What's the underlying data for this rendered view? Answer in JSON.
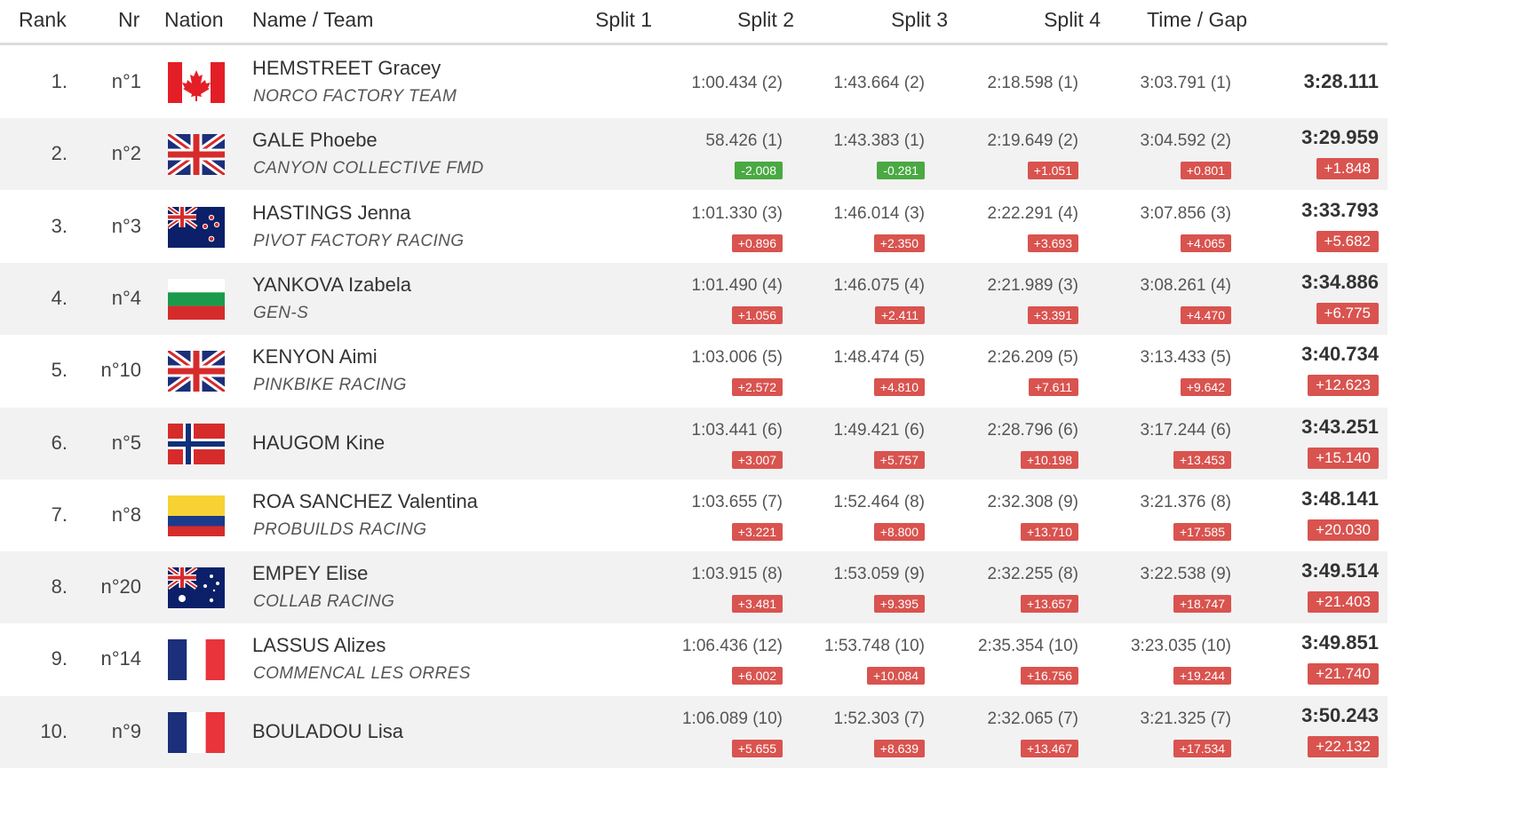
{
  "header": {
    "rank": "Rank",
    "nr": "Nr",
    "nation": "Nation",
    "name_team": "Name / Team",
    "split1": "Split 1",
    "split2": "Split 2",
    "split3": "Split 3",
    "split4": "Split 4",
    "time_gap": "Time / Gap"
  },
  "colors": {
    "slower_badge": "#d9534f",
    "faster_badge": "#49a942",
    "alt_row": "#f2f2f2",
    "header_rule": "#dcdcdc"
  },
  "rows": [
    {
      "rank": "1.",
      "nr": "n°1",
      "flag": "canada-flag-icon",
      "name": "HEMSTREET Gracey",
      "team": "NORCO FACTORY TEAM",
      "splits": [
        {
          "time": "1:00.434 (2)",
          "diff": ""
        },
        {
          "time": "1:43.664 (2)",
          "diff": ""
        },
        {
          "time": "2:18.598 (1)",
          "diff": ""
        },
        {
          "time": "3:03.791 (1)",
          "diff": ""
        }
      ],
      "time": "3:28.111",
      "gap": ""
    },
    {
      "rank": "2.",
      "nr": "n°2",
      "flag": "united-kingdom-flag-icon",
      "name": "GALE Phoebe",
      "team": "CANYON COLLECTIVE FMD",
      "splits": [
        {
          "time": "58.426 (1)",
          "diff": "-2.008"
        },
        {
          "time": "1:43.383 (1)",
          "diff": "-0.281"
        },
        {
          "time": "2:19.649 (2)",
          "diff": "+1.051"
        },
        {
          "time": "3:04.592 (2)",
          "diff": "+0.801"
        }
      ],
      "time": "3:29.959",
      "gap": "+1.848"
    },
    {
      "rank": "3.",
      "nr": "n°3",
      "flag": "new-zealand-flag-icon",
      "name": "HASTINGS Jenna",
      "team": "PIVOT FACTORY RACING",
      "splits": [
        {
          "time": "1:01.330 (3)",
          "diff": "+0.896"
        },
        {
          "time": "1:46.014 (3)",
          "diff": "+2.350"
        },
        {
          "time": "2:22.291 (4)",
          "diff": "+3.693"
        },
        {
          "time": "3:07.856 (3)",
          "diff": "+4.065"
        }
      ],
      "time": "3:33.793",
      "gap": "+5.682"
    },
    {
      "rank": "4.",
      "nr": "n°4",
      "flag": "bulgaria-flag-icon",
      "name": "YANKOVA Izabela",
      "team": "GEN-S",
      "splits": [
        {
          "time": "1:01.490 (4)",
          "diff": "+1.056"
        },
        {
          "time": "1:46.075 (4)",
          "diff": "+2.411"
        },
        {
          "time": "2:21.989 (3)",
          "diff": "+3.391"
        },
        {
          "time": "3:08.261 (4)",
          "diff": "+4.470"
        }
      ],
      "time": "3:34.886",
      "gap": "+6.775"
    },
    {
      "rank": "5.",
      "nr": "n°10",
      "flag": "united-kingdom-flag-icon",
      "name": "KENYON Aimi",
      "team": "PINKBIKE RACING",
      "splits": [
        {
          "time": "1:03.006 (5)",
          "diff": "+2.572"
        },
        {
          "time": "1:48.474 (5)",
          "diff": "+4.810"
        },
        {
          "time": "2:26.209 (5)",
          "diff": "+7.611"
        },
        {
          "time": "3:13.433 (5)",
          "diff": "+9.642"
        }
      ],
      "time": "3:40.734",
      "gap": "+12.623"
    },
    {
      "rank": "6.",
      "nr": "n°5",
      "flag": "norway-flag-icon",
      "name": "HAUGOM Kine",
      "team": "",
      "splits": [
        {
          "time": "1:03.441 (6)",
          "diff": "+3.007"
        },
        {
          "time": "1:49.421 (6)",
          "diff": "+5.757"
        },
        {
          "time": "2:28.796 (6)",
          "diff": "+10.198"
        },
        {
          "time": "3:17.244 (6)",
          "diff": "+13.453"
        }
      ],
      "time": "3:43.251",
      "gap": "+15.140"
    },
    {
      "rank": "7.",
      "nr": "n°8",
      "flag": "colombia-flag-icon",
      "name": "ROA SANCHEZ Valentina",
      "team": "PROBUILDS RACING",
      "splits": [
        {
          "time": "1:03.655 (7)",
          "diff": "+3.221"
        },
        {
          "time": "1:52.464 (8)",
          "diff": "+8.800"
        },
        {
          "time": "2:32.308 (9)",
          "diff": "+13.710"
        },
        {
          "time": "3:21.376 (8)",
          "diff": "+17.585"
        }
      ],
      "time": "3:48.141",
      "gap": "+20.030"
    },
    {
      "rank": "8.",
      "nr": "n°20",
      "flag": "australia-flag-icon",
      "name": "EMPEY Elise",
      "team": "COLLAB RACING",
      "splits": [
        {
          "time": "1:03.915 (8)",
          "diff": "+3.481"
        },
        {
          "time": "1:53.059 (9)",
          "diff": "+9.395"
        },
        {
          "time": "2:32.255 (8)",
          "diff": "+13.657"
        },
        {
          "time": "3:22.538 (9)",
          "diff": "+18.747"
        }
      ],
      "time": "3:49.514",
      "gap": "+21.403"
    },
    {
      "rank": "9.",
      "nr": "n°14",
      "flag": "france-flag-icon",
      "name": "LASSUS Alizes",
      "team": "COMMENCAL LES ORRES",
      "splits": [
        {
          "time": "1:06.436 (12)",
          "diff": "+6.002"
        },
        {
          "time": "1:53.748 (10)",
          "diff": "+10.084"
        },
        {
          "time": "2:35.354 (10)",
          "diff": "+16.756"
        },
        {
          "time": "3:23.035 (10)",
          "diff": "+19.244"
        }
      ],
      "time": "3:49.851",
      "gap": "+21.740"
    },
    {
      "rank": "10.",
      "nr": "n°9",
      "flag": "france-flag-icon",
      "name": "BOULADOU Lisa",
      "team": "",
      "splits": [
        {
          "time": "1:06.089 (10)",
          "diff": "+5.655"
        },
        {
          "time": "1:52.303 (7)",
          "diff": "+8.639"
        },
        {
          "time": "2:32.065 (7)",
          "diff": "+13.467"
        },
        {
          "time": "3:21.325 (7)",
          "diff": "+17.534"
        }
      ],
      "time": "3:50.243",
      "gap": "+22.132"
    }
  ]
}
